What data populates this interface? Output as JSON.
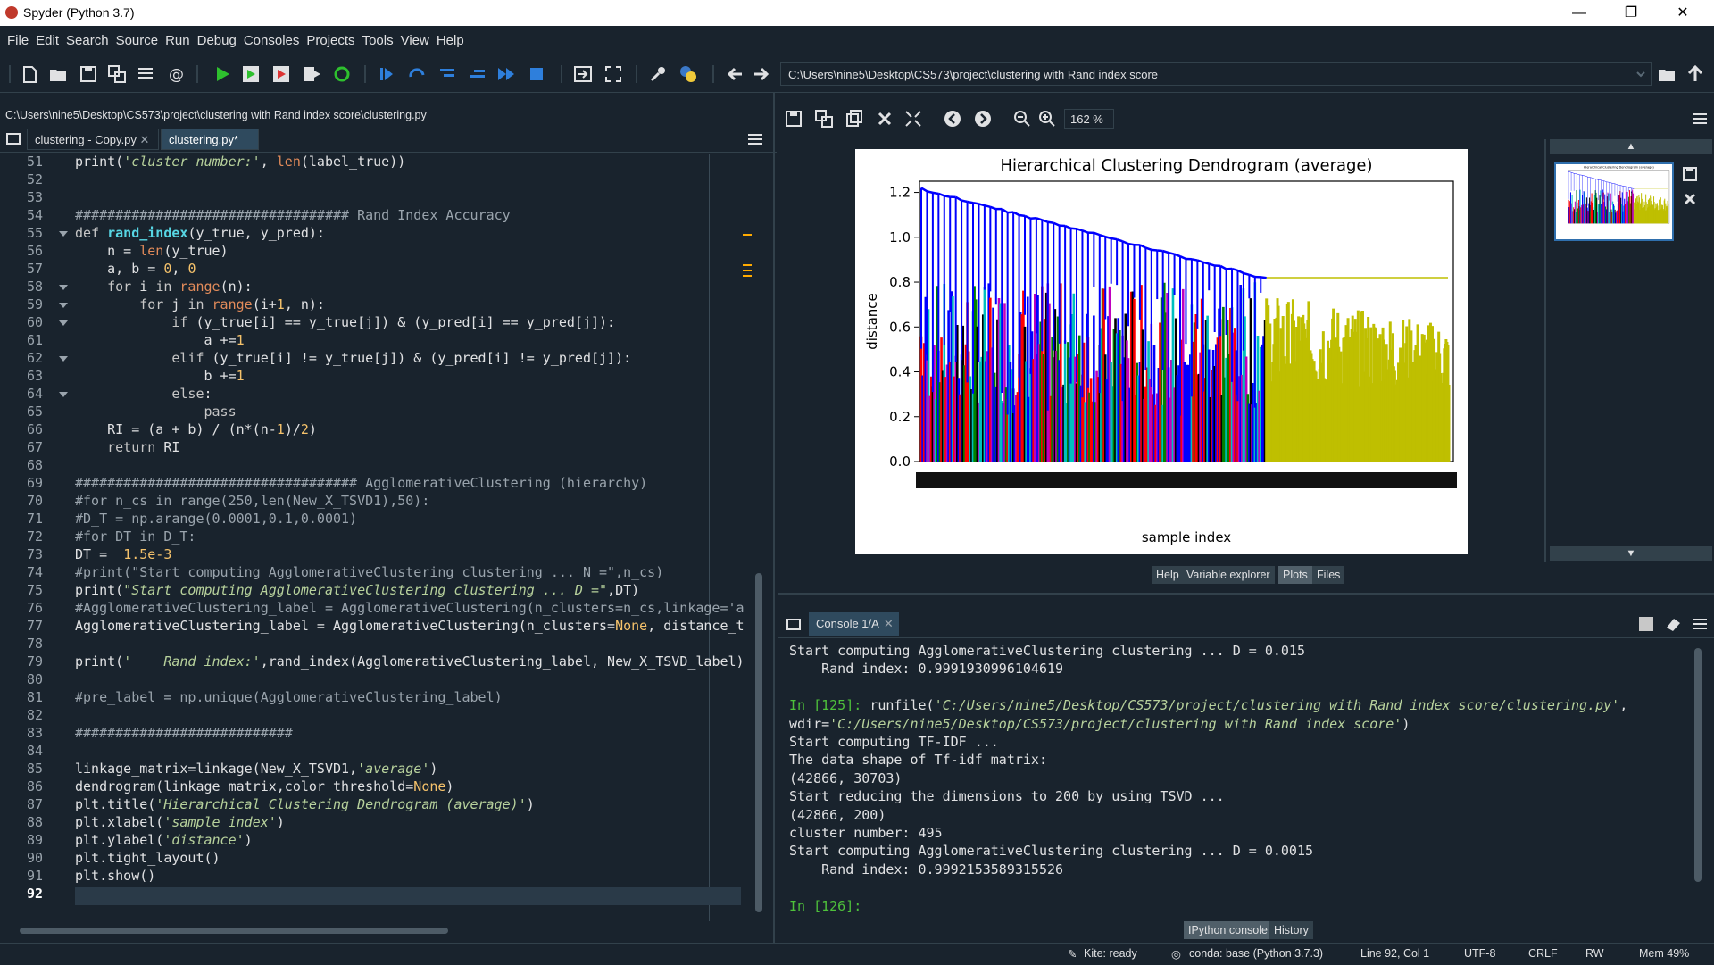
{
  "window": {
    "title": "Spyder (Python 3.7)",
    "minimize": "—",
    "maximize": "❐",
    "close": "✕"
  },
  "menu": [
    "File",
    "Edit",
    "Search",
    "Source",
    "Run",
    "Debug",
    "Consoles",
    "Projects",
    "Tools",
    "View",
    "Help"
  ],
  "toolbar": {
    "icons": [
      "new-file-icon",
      "open-file-icon",
      "save-icon",
      "save-all-icon",
      "outline-icon",
      "email-icon",
      "run-icon",
      "run-cell-icon",
      "run-cell-advance-icon",
      "run-selection-icon",
      "rerun-icon",
      "debug-icon",
      "step-icon",
      "step-into-icon",
      "step-return-icon",
      "continue-icon",
      "stop-icon",
      "maximize-pane-icon",
      "fullscreen-icon",
      "wrench-icon",
      "python-path-icon",
      "back-icon",
      "forward-icon"
    ],
    "working_dir": "C:\\Users\\nine5\\Desktop\\CS573\\project\\clustering with Rand index score"
  },
  "editor": {
    "path": "C:\\Users\\nine5\\Desktop\\CS573\\project\\clustering with Rand index score\\clustering.py",
    "tabs": [
      "clustering - Copy.py",
      "clustering.py*"
    ],
    "lines": [
      {
        "n": "51",
        "t": [
          [
            "",
            "print("
          ],
          [
            "st",
            "'cluster number:'"
          ],
          [
            "",
            ", "
          ],
          [
            "bi",
            "len"
          ],
          [
            "",
            "(label_true))"
          ]
        ]
      },
      {
        "n": "52",
        "t": []
      },
      {
        "n": "53",
        "t": []
      },
      {
        "n": "54",
        "t": [
          [
            "cm",
            "################################## Rand Index Accuracy"
          ]
        ]
      },
      {
        "n": "55",
        "fold": true,
        "t": [
          [
            "kw",
            "def "
          ],
          [
            "fn",
            "rand_index"
          ],
          [
            "",
            "(y_true, y_pred):"
          ]
        ]
      },
      {
        "n": "56",
        "t": [
          [
            "",
            "    n = "
          ],
          [
            "bi",
            "len"
          ],
          [
            "",
            "(y_true)"
          ]
        ]
      },
      {
        "n": "57",
        "t": [
          [
            "",
            "    a, b = "
          ],
          [
            "nm",
            "0"
          ],
          [
            "",
            ", "
          ],
          [
            "nm",
            "0"
          ]
        ]
      },
      {
        "n": "58",
        "fold": true,
        "t": [
          [
            "kw",
            "    for "
          ],
          [
            "",
            "i "
          ],
          [
            "kw",
            "in "
          ],
          [
            "bi",
            "range"
          ],
          [
            "",
            "(n):"
          ]
        ]
      },
      {
        "n": "59",
        "fold": true,
        "t": [
          [
            "kw",
            "        for "
          ],
          [
            "",
            "j "
          ],
          [
            "kw",
            "in "
          ],
          [
            "bi",
            "range"
          ],
          [
            "",
            "(i+"
          ],
          [
            "nm",
            "1"
          ],
          [
            "",
            ", n):"
          ]
        ]
      },
      {
        "n": "60",
        "fold": true,
        "t": [
          [
            "kw",
            "            if "
          ],
          [
            "",
            "(y_true[i] == y_true[j]) & (y_pred[i] == y_pred[j]):"
          ]
        ]
      },
      {
        "n": "61",
        "t": [
          [
            "",
            "                a +="
          ],
          [
            "nm",
            "1"
          ]
        ]
      },
      {
        "n": "62",
        "fold": true,
        "t": [
          [
            "kw",
            "            elif "
          ],
          [
            "",
            "(y_true[i] != y_true[j]) & (y_pred[i] != y_pred[j]):"
          ]
        ]
      },
      {
        "n": "63",
        "t": [
          [
            "",
            "                b +="
          ],
          [
            "nm",
            "1"
          ]
        ]
      },
      {
        "n": "64",
        "fold": true,
        "t": [
          [
            "kw",
            "            else"
          ],
          [
            "",
            ":"
          ]
        ]
      },
      {
        "n": "65",
        "t": [
          [
            "kw",
            "                pass"
          ]
        ]
      },
      {
        "n": "66",
        "t": [
          [
            "",
            "    RI = (a + b) / (n*(n-"
          ],
          [
            "nm",
            "1"
          ],
          [
            "",
            ")/"
          ],
          [
            "nm",
            "2"
          ],
          [
            "",
            ")"
          ]
        ]
      },
      {
        "n": "67",
        "t": [
          [
            "kw",
            "    return "
          ],
          [
            "",
            "RI"
          ]
        ]
      },
      {
        "n": "68",
        "t": []
      },
      {
        "n": "69",
        "t": [
          [
            "cm",
            "################################### AgglomerativeClustering (hierarchy)"
          ]
        ]
      },
      {
        "n": "70",
        "t": [
          [
            "cm",
            "#for n_cs in range(250,len(New_X_TSVD1),50):"
          ]
        ]
      },
      {
        "n": "71",
        "t": [
          [
            "cm",
            "#D_T = np.arange(0.0001,0.1,0.0001)"
          ]
        ]
      },
      {
        "n": "72",
        "t": [
          [
            "cm",
            "#for DT in D_T:"
          ]
        ]
      },
      {
        "n": "73",
        "t": [
          [
            "",
            "DT =  "
          ],
          [
            "nm",
            "1.5e-3"
          ]
        ]
      },
      {
        "n": "74",
        "t": [
          [
            "cm",
            "#print(\"Start computing AgglomerativeClustering clustering ... N =\",n_cs)"
          ]
        ]
      },
      {
        "n": "75",
        "t": [
          [
            "",
            "print("
          ],
          [
            "st",
            "\"Start computing AgglomerativeClustering clustering ... D =\""
          ],
          [
            "",
            ",DT)"
          ]
        ]
      },
      {
        "n": "76",
        "t": [
          [
            "cm",
            "#AgglomerativeClustering_label = AgglomerativeClustering(n_clusters=n_cs,linkage='a"
          ]
        ]
      },
      {
        "n": "77",
        "t": [
          [
            "",
            "AgglomerativeClustering_label = AgglomerativeClustering(n_clusters="
          ],
          [
            "nm",
            "None"
          ],
          [
            "",
            ", distance_t"
          ]
        ]
      },
      {
        "n": "78",
        "t": []
      },
      {
        "n": "79",
        "t": [
          [
            "",
            "print("
          ],
          [
            "st",
            "'    Rand index:'"
          ],
          [
            "",
            ",rand_index(AgglomerativeClustering_label, New_X_TSVD_label)"
          ]
        ]
      },
      {
        "n": "80",
        "t": []
      },
      {
        "n": "81",
        "t": [
          [
            "cm",
            "#pre_label = np.unique(AgglomerativeClustering_label)"
          ]
        ]
      },
      {
        "n": "82",
        "t": []
      },
      {
        "n": "83",
        "t": [
          [
            "cm",
            "###########################"
          ]
        ]
      },
      {
        "n": "84",
        "t": []
      },
      {
        "n": "85",
        "t": [
          [
            "",
            "linkage_matrix=linkage(New_X_TSVD1,"
          ],
          [
            "st",
            "'average'"
          ],
          [
            "",
            ")"
          ]
        ]
      },
      {
        "n": "86",
        "t": [
          [
            "",
            "dendrogram(linkage_matrix,color_threshold="
          ],
          [
            "nm",
            "None"
          ],
          [
            "",
            ")"
          ]
        ]
      },
      {
        "n": "87",
        "t": [
          [
            "",
            "plt.title("
          ],
          [
            "st",
            "'Hierarchical Clustering Dendrogram (average)'"
          ],
          [
            "",
            ")"
          ]
        ]
      },
      {
        "n": "88",
        "t": [
          [
            "",
            "plt.xlabel("
          ],
          [
            "st",
            "'sample index'"
          ],
          [
            "",
            ")"
          ]
        ]
      },
      {
        "n": "89",
        "t": [
          [
            "",
            "plt.ylabel("
          ],
          [
            "st",
            "'distance'"
          ],
          [
            "",
            ")"
          ]
        ]
      },
      {
        "n": "90",
        "t": [
          [
            "",
            "plt.tight_layout()"
          ]
        ]
      },
      {
        "n": "91",
        "t": [
          [
            "",
            "plt.show()"
          ]
        ]
      },
      {
        "n": "92",
        "t": []
      }
    ]
  },
  "plots": {
    "zoom": "162 %",
    "tabs": [
      "Help",
      "Variable explorer",
      "Plots",
      "Files"
    ],
    "active_tab": "Plots"
  },
  "chart_data": {
    "type": "dendrogram",
    "title": "Hierarchical Clustering Dendrogram (average)",
    "xlabel": "sample index",
    "ylabel": "distance",
    "ylim": [
      0,
      1.25
    ],
    "yticks": [
      "0.0",
      "0.2",
      "0.4",
      "0.6",
      "0.8",
      "1.0",
      "1.2"
    ],
    "top_merge_height": 1.22,
    "cluster_colors": [
      "#0000ff",
      "#00bfbf",
      "#ff0000",
      "#bf00bf",
      "#000000",
      "#008000",
      "#bfbf00"
    ]
  },
  "console": {
    "tab": "Console 1/A",
    "lines": [
      [
        [
          "",
          "Start computing AgglomerativeClustering clustering ... D = 0.015"
        ]
      ],
      [
        [
          "",
          "    Rand index: 0.9991930996104619"
        ]
      ],
      [],
      [
        [
          "pr",
          "In [125]: "
        ],
        [
          "",
          "runfile("
        ],
        [
          "cst",
          "'C:/Users/nine5/Desktop/CS573/project/clustering with Rand index score/clustering.py'"
        ],
        [
          "",
          ","
        ]
      ],
      [
        [
          "",
          "wdir="
        ],
        [
          "cst",
          "'C:/Users/nine5/Desktop/CS573/project/clustering with Rand index score'"
        ],
        [
          "",
          ")"
        ]
      ],
      [
        [
          "",
          "Start computing TF-IDF ..."
        ]
      ],
      [
        [
          "",
          "The data shape of Tf-idf matrix:"
        ]
      ],
      [
        [
          "",
          "(42866, 30703)"
        ]
      ],
      [
        [
          "",
          "Start reducing the dimensions to 200 by using TSVD ..."
        ]
      ],
      [
        [
          "",
          "(42866, 200)"
        ]
      ],
      [
        [
          "",
          "cluster number: 495"
        ]
      ],
      [
        [
          "",
          "Start computing AgglomerativeClustering clustering ... D = 0.0015"
        ]
      ],
      [
        [
          "",
          "    Rand index: 0.9992153589315526"
        ]
      ],
      [],
      [
        [
          "pr",
          "In [126]: "
        ]
      ]
    ],
    "bottom_tabs": [
      "IPython console",
      "History"
    ]
  },
  "statusbar": {
    "kite": "Kite: ready",
    "conda": "conda: base (Python 3.7.3)",
    "position": "Line 92, Col 1",
    "encoding": "UTF-8",
    "eol": "CRLF",
    "permissions": "RW",
    "memory": "Mem 49%"
  }
}
